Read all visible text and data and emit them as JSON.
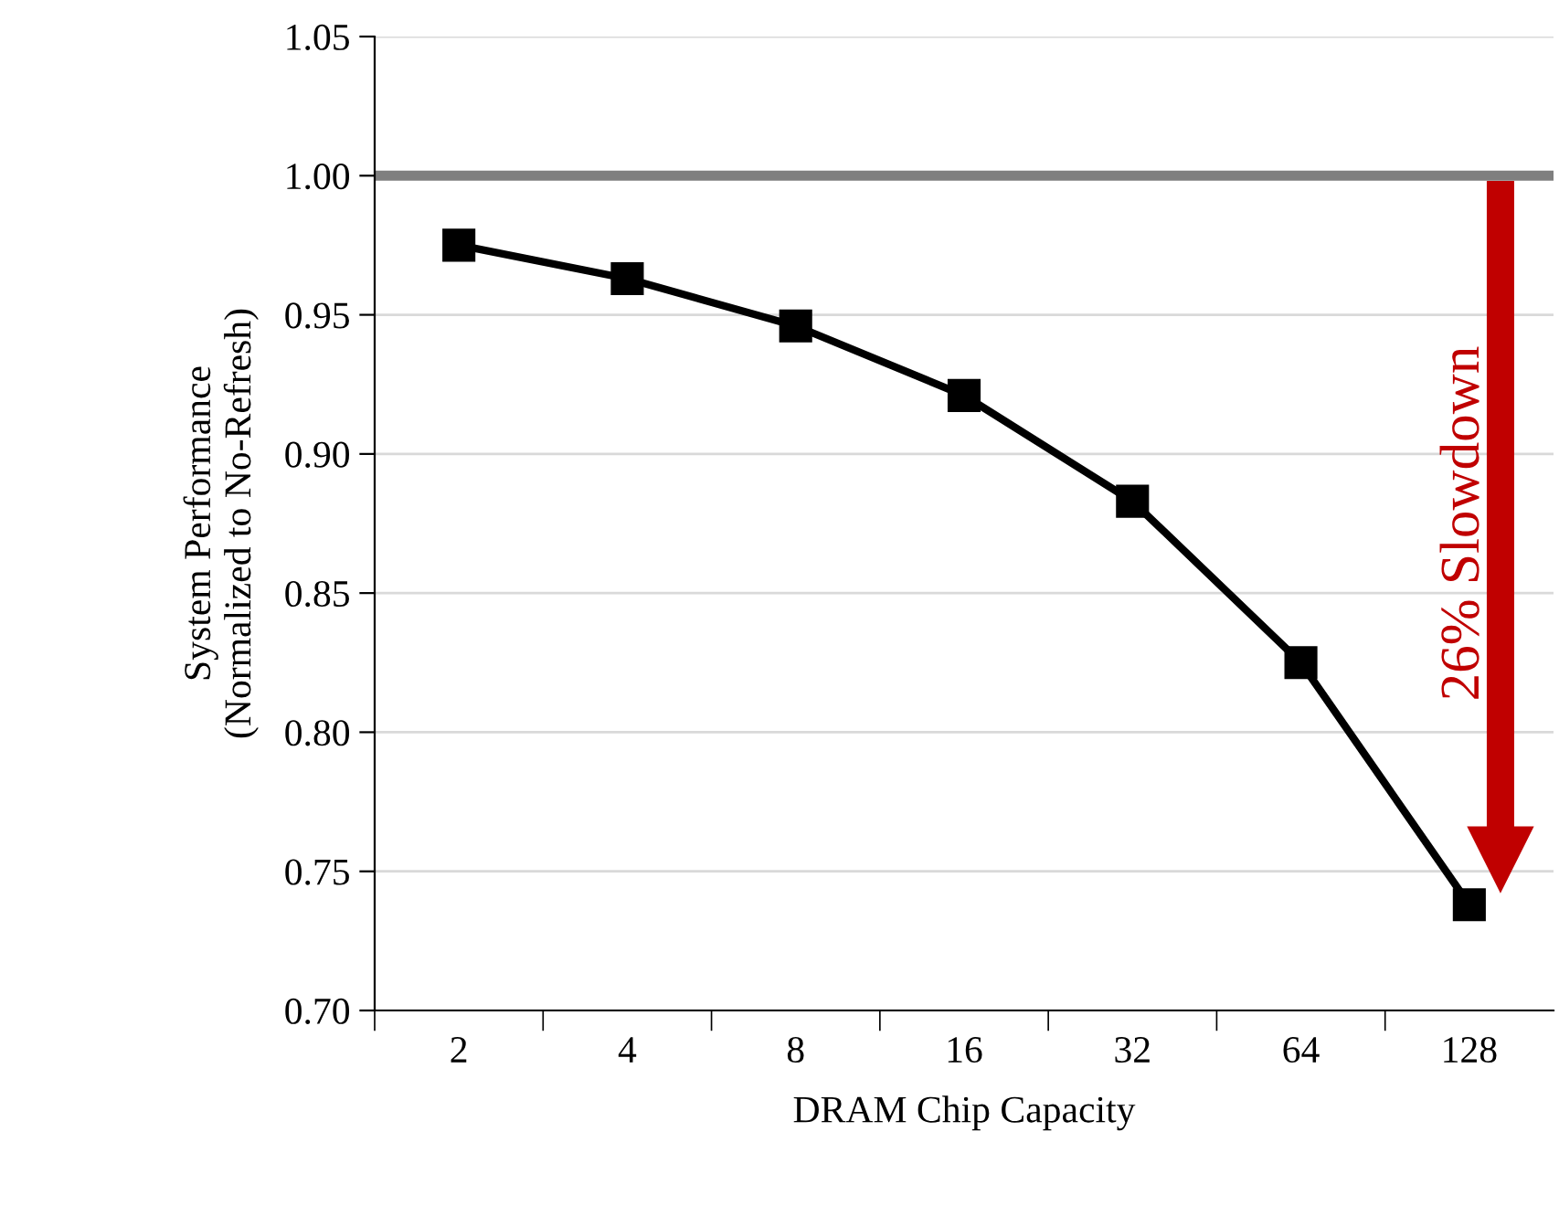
{
  "chart_data": {
    "type": "line",
    "xlabel": "DRAM Chip Capacity",
    "ylabel": "System Performance\n(Normalized to No-Refresh)",
    "categories": [
      "2",
      "4",
      "8",
      "16",
      "32",
      "64",
      "128"
    ],
    "series": [
      {
        "color": "#000000",
        "values": [
          0.975,
          0.963,
          0.946,
          0.921,
          0.883,
          0.825,
          0.738
        ]
      }
    ],
    "ylim": [
      0.7,
      1.05
    ],
    "yticks": [
      {
        "value": 0.7,
        "label": "0.70"
      },
      {
        "value": 0.75,
        "label": "0.75"
      },
      {
        "value": 0.8,
        "label": "0.80"
      },
      {
        "value": 0.85,
        "label": "0.85"
      },
      {
        "value": 0.9,
        "label": "0.90"
      },
      {
        "value": 0.95,
        "label": "0.95"
      },
      {
        "value": 1.0,
        "label": "1.00"
      },
      {
        "value": 1.05,
        "label": "1.05"
      }
    ],
    "ref_lines": [
      {
        "axis": "y",
        "value": 1.0,
        "color": "#7f7f7f"
      }
    ],
    "annotations": [
      "26% Slowdown"
    ],
    "grid": "y",
    "marker": "square",
    "line_style": "solid",
    "legend": false
  }
}
